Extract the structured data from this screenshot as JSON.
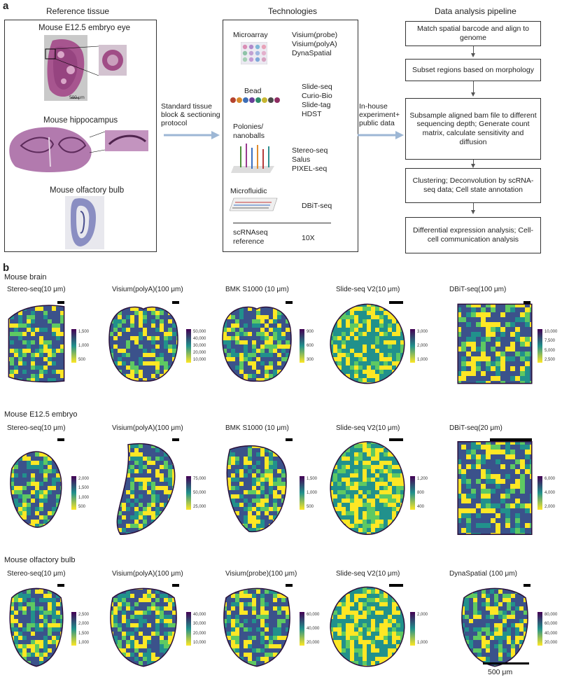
{
  "panel_a": {
    "letter": "a",
    "reference": {
      "heading": "Reference tissue",
      "embryo": "Mouse E12.5 embryo eye",
      "embryo_scale": "500 μm",
      "hippocampus": "Mouse hippocampus",
      "olfactory": "Mouse olfactory bulb"
    },
    "standard_protocol": [
      "Standard tissue",
      "block & sectioning",
      "protocol"
    ],
    "technologies": {
      "heading": "Technologies",
      "groups": [
        {
          "name": "Microarray",
          "items": [
            "Visium(probe)",
            "Visium(polyA)",
            "DynaSpatial"
          ]
        },
        {
          "name": "Bead",
          "items": [
            "Slide-seq",
            "Curio-Bio",
            "Slide-tag",
            "HDST"
          ]
        },
        {
          "name": "Polonies/\nnanoballs",
          "items": [
            "Stereo-seq",
            "Salus",
            "PIXEL-seq"
          ]
        },
        {
          "name": "Microfluidic",
          "items": [
            "DBiT-seq"
          ]
        },
        {
          "name": "scRNAseq\nreference",
          "items": [
            "10X"
          ]
        }
      ]
    },
    "inhouse": [
      "In-house",
      "experiment+",
      "public data"
    ],
    "pipeline": {
      "heading": "Data analysis pipeline",
      "steps": [
        "Match spatial barcode and align to genome",
        "Subset regions based on morphology",
        "Subsample aligned bam file to different sequencing depth; Generate count matrix, calculate sensitivity and diffusion",
        "Clustering; Deconvolution by scRNA-seq data; Cell state annotation",
        "Differential expression analysis; Cell-cell communication analysis"
      ]
    }
  },
  "panel_b": {
    "letter": "b",
    "rows": [
      {
        "title": "Mouse brain",
        "panels": [
          {
            "label": "Stereo-seq(10 μm)",
            "ticks": [
              "1,500",
              "1,000",
              "500"
            ]
          },
          {
            "label": "Visium(polyA)(100 μm)",
            "ticks": [
              "50,000",
              "40,000",
              "30,000",
              "20,000",
              "10,000"
            ]
          },
          {
            "label": "BMK S1000 (10 μm)",
            "ticks": [
              "900",
              "600",
              "300"
            ]
          },
          {
            "label": "Slide-seq V2(10 μm)",
            "ticks": [
              "3,000",
              "2,000",
              "1,000"
            ]
          },
          {
            "label": "DBiT-seq(100 μm)",
            "ticks": [
              "10,000",
              "7,500",
              "5,000",
              "2,500"
            ]
          }
        ]
      },
      {
        "title": "Mouse E12.5 embryo",
        "panels": [
          {
            "label": "Stereo-seq(10 μm)",
            "ticks": [
              "2,000",
              "1,500",
              "1,000",
              "500"
            ]
          },
          {
            "label": "Visium(polyA)(100 μm)",
            "ticks": [
              "75,000",
              "50,000",
              "25,000"
            ]
          },
          {
            "label": "BMK S1000 (10 μm)",
            "ticks": [
              "1,500",
              "1,000",
              "500"
            ]
          },
          {
            "label": "Slide-seq V2(10 μm)",
            "ticks": [
              "1,200",
              "800",
              "400"
            ]
          },
          {
            "label": "DBiT-seq(20 μm)",
            "ticks": [
              "6,000",
              "4,000",
              "2,000"
            ]
          }
        ]
      },
      {
        "title": "Mouse olfactory bulb",
        "panels": [
          {
            "label": "Stereo-seq(10 μm)",
            "ticks": [
              "2,500",
              "2,000",
              "1,500",
              "1,000"
            ]
          },
          {
            "label": "Visium(polyA)(100 μm)",
            "ticks": [
              "40,000",
              "30,000",
              "20,000",
              "10,000"
            ]
          },
          {
            "label": "Visium(probe)(100 μm)",
            "ticks": [
              "60,000",
              "40,000",
              "20,000"
            ]
          },
          {
            "label": "Slide-seq V2(10 μm)",
            "ticks": [
              "2,000",
              "1,000"
            ]
          },
          {
            "label": "DynaSpatial (100 μm)",
            "ticks": [
              "80,000",
              "60,000",
              "40,000",
              "20,000"
            ]
          }
        ]
      }
    ],
    "scale": "500 μm"
  },
  "colors": {
    "viridis_dark": "#440154",
    "viridis_mid": "#21918c",
    "viridis_light": "#fde725",
    "he_pink": "#b3669e",
    "arrow_blue": "#9db7d5"
  }
}
